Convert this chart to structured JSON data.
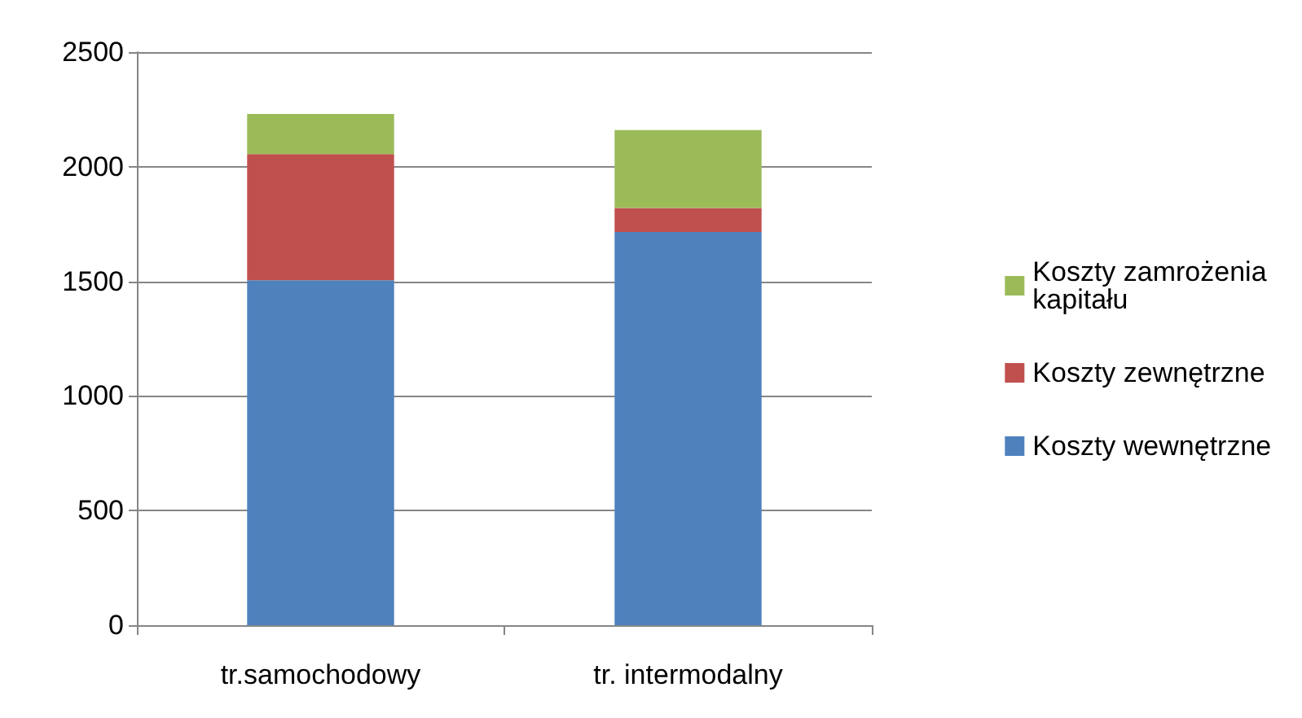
{
  "chart_data": {
    "type": "bar",
    "stacked": true,
    "categories": [
      "tr.samochodowy",
      "tr. intermodalny"
    ],
    "series": [
      {
        "name": "Koszty wewnętrzne",
        "color": "#4f81bd",
        "values": [
          1505,
          1715
        ]
      },
      {
        "name": "Koszty zewnętrzne",
        "color": "#c0504d",
        "values": [
          550,
          105
        ]
      },
      {
        "name": "Koszty zamrożenia kapitału",
        "color": "#9bbb59",
        "values": [
          175,
          340
        ]
      }
    ],
    "ylim": [
      0,
      2500
    ],
    "yticks": [
      0,
      500,
      1000,
      1500,
      2000,
      2500
    ],
    "grid": "y",
    "legend": "right"
  }
}
